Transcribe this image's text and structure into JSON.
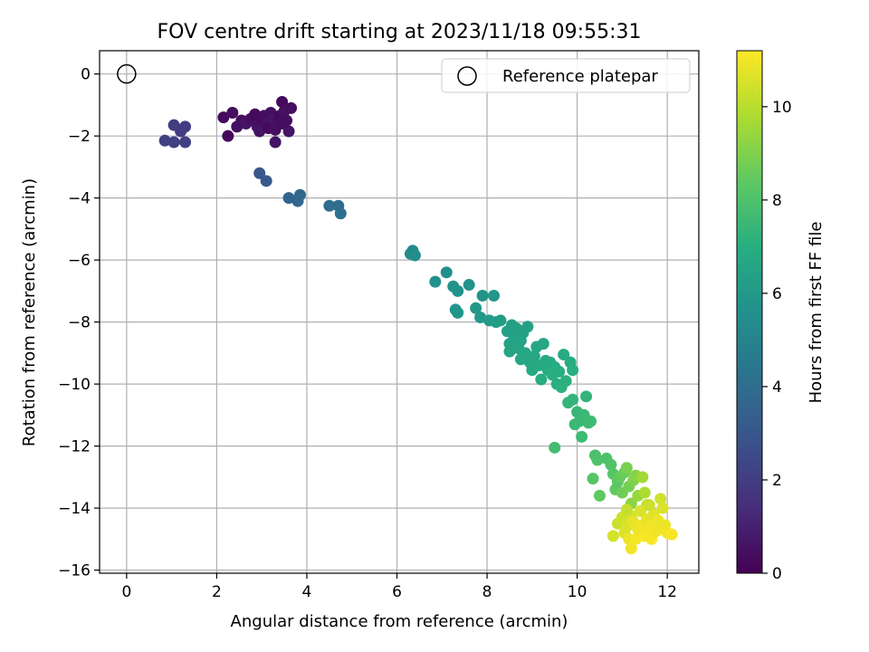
{
  "chart_data": {
    "type": "scatter",
    "title": "FOV centre drift starting at 2023/11/18 09:55:31",
    "xlabel": "Angular distance from reference (arcmin)",
    "ylabel": "Rotation from reference (arcmin)",
    "xlim": [
      -0.6,
      12.7
    ],
    "ylim": [
      -16.1,
      0.75
    ],
    "xticks": [
      0,
      2,
      4,
      6,
      8,
      10,
      12
    ],
    "yticks": [
      0,
      -2,
      -4,
      -6,
      -8,
      -10,
      -12,
      -14,
      -16
    ],
    "grid": true,
    "legend": {
      "position": "top-right",
      "entries": [
        "Reference platepar"
      ]
    },
    "reference_point": {
      "x": 0,
      "y": 0
    },
    "colorbar": {
      "label": "Hours from first FF file",
      "colormap": "viridis",
      "range": [
        0,
        11.2
      ],
      "ticks": [
        0,
        2,
        4,
        6,
        8,
        10
      ]
    },
    "points": [
      {
        "x": 0.85,
        "y": -2.15,
        "h": 2.1
      },
      {
        "x": 1.05,
        "y": -2.2,
        "h": 2.1
      },
      {
        "x": 1.05,
        "y": -1.65,
        "h": 2.0
      },
      {
        "x": 1.2,
        "y": -1.85,
        "h": 2.0
      },
      {
        "x": 1.3,
        "y": -1.7,
        "h": 2.0
      },
      {
        "x": 1.3,
        "y": -2.2,
        "h": 2.1
      },
      {
        "x": 2.15,
        "y": -1.4,
        "h": 0.3
      },
      {
        "x": 2.25,
        "y": -2.0,
        "h": 0.3
      },
      {
        "x": 2.35,
        "y": -1.25,
        "h": 0.4
      },
      {
        "x": 2.45,
        "y": -1.7,
        "h": 0.5
      },
      {
        "x": 2.55,
        "y": -1.5,
        "h": 0.4
      },
      {
        "x": 2.65,
        "y": -1.6,
        "h": 0.6
      },
      {
        "x": 2.75,
        "y": -1.45,
        "h": 0.4
      },
      {
        "x": 2.85,
        "y": -1.3,
        "h": 0.3
      },
      {
        "x": 2.9,
        "y": -1.7,
        "h": 0.5
      },
      {
        "x": 2.95,
        "y": -1.85,
        "h": 0.6
      },
      {
        "x": 3.0,
        "y": -1.5,
        "h": 0.3
      },
      {
        "x": 3.05,
        "y": -1.35,
        "h": 0.4
      },
      {
        "x": 3.1,
        "y": -1.6,
        "h": 0.5
      },
      {
        "x": 3.15,
        "y": -1.75,
        "h": 0.3
      },
      {
        "x": 3.2,
        "y": -1.25,
        "h": 0.4
      },
      {
        "x": 3.25,
        "y": -1.45,
        "h": 0.6
      },
      {
        "x": 3.3,
        "y": -1.8,
        "h": 0.4
      },
      {
        "x": 3.3,
        "y": -2.2,
        "h": 0.6
      },
      {
        "x": 3.35,
        "y": -1.55,
        "h": 0.5
      },
      {
        "x": 3.4,
        "y": -1.35,
        "h": 0.3
      },
      {
        "x": 3.45,
        "y": -0.9,
        "h": 0.3
      },
      {
        "x": 3.45,
        "y": -1.6,
        "h": 0.4
      },
      {
        "x": 3.5,
        "y": -1.2,
        "h": 0.5
      },
      {
        "x": 3.55,
        "y": -1.5,
        "h": 0.4
      },
      {
        "x": 3.6,
        "y": -1.85,
        "h": 0.6
      },
      {
        "x": 3.65,
        "y": -1.1,
        "h": 0.4
      },
      {
        "x": 2.95,
        "y": -3.2,
        "h": 3.0
      },
      {
        "x": 3.1,
        "y": -3.45,
        "h": 3.1
      },
      {
        "x": 3.6,
        "y": -4.0,
        "h": 3.6
      },
      {
        "x": 3.8,
        "y": -4.1,
        "h": 3.7
      },
      {
        "x": 3.85,
        "y": -3.9,
        "h": 3.7
      },
      {
        "x": 4.5,
        "y": -4.25,
        "h": 4.0
      },
      {
        "x": 4.7,
        "y": -4.25,
        "h": 4.0
      },
      {
        "x": 4.75,
        "y": -4.5,
        "h": 4.1
      },
      {
        "x": 6.3,
        "y": -5.8,
        "h": 5.3
      },
      {
        "x": 6.35,
        "y": -5.7,
        "h": 5.3
      },
      {
        "x": 6.4,
        "y": -5.85,
        "h": 5.4
      },
      {
        "x": 6.85,
        "y": -6.7,
        "h": 5.6
      },
      {
        "x": 7.1,
        "y": -6.4,
        "h": 5.5
      },
      {
        "x": 7.25,
        "y": -6.85,
        "h": 5.7
      },
      {
        "x": 7.3,
        "y": -7.6,
        "h": 5.8
      },
      {
        "x": 7.35,
        "y": -7.0,
        "h": 5.7
      },
      {
        "x": 7.35,
        "y": -7.7,
        "h": 5.8
      },
      {
        "x": 7.6,
        "y": -6.8,
        "h": 5.7
      },
      {
        "x": 7.75,
        "y": -7.55,
        "h": 5.9
      },
      {
        "x": 7.85,
        "y": -7.85,
        "h": 6.0
      },
      {
        "x": 7.9,
        "y": -7.15,
        "h": 5.8
      },
      {
        "x": 8.05,
        "y": -7.95,
        "h": 6.1
      },
      {
        "x": 8.15,
        "y": -7.15,
        "h": 5.9
      },
      {
        "x": 8.2,
        "y": -8.0,
        "h": 6.2
      },
      {
        "x": 8.3,
        "y": -7.95,
        "h": 6.2
      },
      {
        "x": 8.45,
        "y": -8.3,
        "h": 6.3
      },
      {
        "x": 8.5,
        "y": -8.7,
        "h": 6.4
      },
      {
        "x": 8.5,
        "y": -8.95,
        "h": 6.5
      },
      {
        "x": 8.55,
        "y": -8.1,
        "h": 6.3
      },
      {
        "x": 8.6,
        "y": -8.45,
        "h": 6.4
      },
      {
        "x": 8.65,
        "y": -8.2,
        "h": 6.3
      },
      {
        "x": 8.7,
        "y": -8.85,
        "h": 6.5
      },
      {
        "x": 8.75,
        "y": -8.6,
        "h": 6.4
      },
      {
        "x": 8.75,
        "y": -9.2,
        "h": 6.6
      },
      {
        "x": 8.8,
        "y": -8.35,
        "h": 6.4
      },
      {
        "x": 8.85,
        "y": -9.0,
        "h": 6.6
      },
      {
        "x": 8.9,
        "y": -8.15,
        "h": 6.3
      },
      {
        "x": 8.95,
        "y": -9.3,
        "h": 6.7
      },
      {
        "x": 9.0,
        "y": -9.55,
        "h": 6.8
      },
      {
        "x": 9.05,
        "y": -9.1,
        "h": 6.7
      },
      {
        "x": 9.1,
        "y": -8.8,
        "h": 6.6
      },
      {
        "x": 9.15,
        "y": -9.4,
        "h": 6.8
      },
      {
        "x": 9.2,
        "y": -9.85,
        "h": 6.9
      },
      {
        "x": 9.25,
        "y": -8.7,
        "h": 6.6
      },
      {
        "x": 9.3,
        "y": -9.25,
        "h": 6.8
      },
      {
        "x": 9.35,
        "y": -9.55,
        "h": 6.9
      },
      {
        "x": 9.4,
        "y": -9.3,
        "h": 6.8
      },
      {
        "x": 9.45,
        "y": -9.7,
        "h": 7.0
      },
      {
        "x": 9.5,
        "y": -9.45,
        "h": 6.9
      },
      {
        "x": 9.55,
        "y": -10.0,
        "h": 7.0
      },
      {
        "x": 9.6,
        "y": -9.6,
        "h": 7.0
      },
      {
        "x": 9.65,
        "y": -10.1,
        "h": 7.1
      },
      {
        "x": 9.7,
        "y": -9.05,
        "h": 6.8
      },
      {
        "x": 9.75,
        "y": -9.9,
        "h": 7.1
      },
      {
        "x": 9.8,
        "y": -10.6,
        "h": 7.3
      },
      {
        "x": 9.85,
        "y": -9.3,
        "h": 6.9
      },
      {
        "x": 9.9,
        "y": -10.5,
        "h": 7.3
      },
      {
        "x": 9.9,
        "y": -9.55,
        "h": 7.0
      },
      {
        "x": 9.5,
        "y": -12.05,
        "h": 7.7
      },
      {
        "x": 9.95,
        "y": -11.3,
        "h": 7.5
      },
      {
        "x": 10.0,
        "y": -10.9,
        "h": 7.4
      },
      {
        "x": 10.05,
        "y": -11.2,
        "h": 7.5
      },
      {
        "x": 10.1,
        "y": -11.7,
        "h": 7.6
      },
      {
        "x": 10.15,
        "y": -11.0,
        "h": 7.5
      },
      {
        "x": 10.2,
        "y": -10.4,
        "h": 7.3
      },
      {
        "x": 10.25,
        "y": -11.25,
        "h": 7.6
      },
      {
        "x": 10.3,
        "y": -11.2,
        "h": 7.6
      },
      {
        "x": 10.35,
        "y": -13.05,
        "h": 8.2
      },
      {
        "x": 10.4,
        "y": -12.3,
        "h": 7.9
      },
      {
        "x": 10.45,
        "y": -12.45,
        "h": 8.0
      },
      {
        "x": 10.5,
        "y": -13.6,
        "h": 8.4
      },
      {
        "x": 10.65,
        "y": -12.4,
        "h": 8.0
      },
      {
        "x": 10.75,
        "y": -12.6,
        "h": 8.1
      },
      {
        "x": 10.8,
        "y": -12.9,
        "h": 8.2
      },
      {
        "x": 10.85,
        "y": -13.4,
        "h": 8.4
      },
      {
        "x": 10.9,
        "y": -13.15,
        "h": 8.3
      },
      {
        "x": 10.95,
        "y": -13.0,
        "h": 8.5
      },
      {
        "x": 11.0,
        "y": -13.5,
        "h": 8.7
      },
      {
        "x": 11.05,
        "y": -12.85,
        "h": 8.6
      },
      {
        "x": 11.1,
        "y": -12.7,
        "h": 8.9
      },
      {
        "x": 11.15,
        "y": -13.3,
        "h": 8.8
      },
      {
        "x": 11.2,
        "y": -13.85,
        "h": 9.2
      },
      {
        "x": 11.25,
        "y": -13.1,
        "h": 9.0
      },
      {
        "x": 11.3,
        "y": -12.95,
        "h": 9.1
      },
      {
        "x": 11.35,
        "y": -13.6,
        "h": 9.4
      },
      {
        "x": 11.45,
        "y": -13.0,
        "h": 9.6
      },
      {
        "x": 11.5,
        "y": -13.5,
        "h": 9.8
      },
      {
        "x": 11.55,
        "y": -13.9,
        "h": 10.0
      },
      {
        "x": 10.8,
        "y": -14.9,
        "h": 10.5
      },
      {
        "x": 10.9,
        "y": -14.5,
        "h": 10.3
      },
      {
        "x": 11.0,
        "y": -14.3,
        "h": 10.4
      },
      {
        "x": 11.05,
        "y": -14.8,
        "h": 10.7
      },
      {
        "x": 11.1,
        "y": -14.6,
        "h": 10.6
      },
      {
        "x": 11.15,
        "y": -15.0,
        "h": 10.9
      },
      {
        "x": 11.2,
        "y": -14.25,
        "h": 10.5
      },
      {
        "x": 11.2,
        "y": -15.3,
        "h": 11.0
      },
      {
        "x": 11.25,
        "y": -14.45,
        "h": 10.8
      },
      {
        "x": 11.3,
        "y": -15.0,
        "h": 11.1
      },
      {
        "x": 11.35,
        "y": -14.7,
        "h": 10.9
      },
      {
        "x": 11.4,
        "y": -14.1,
        "h": 10.6
      },
      {
        "x": 11.45,
        "y": -14.55,
        "h": 11.0
      },
      {
        "x": 11.5,
        "y": -14.9,
        "h": 11.1
      },
      {
        "x": 11.55,
        "y": -14.35,
        "h": 10.8
      },
      {
        "x": 11.6,
        "y": -14.6,
        "h": 11.0
      },
      {
        "x": 11.65,
        "y": -15.0,
        "h": 11.1
      },
      {
        "x": 11.7,
        "y": -14.2,
        "h": 10.7
      },
      {
        "x": 11.75,
        "y": -14.75,
        "h": 11.0
      },
      {
        "x": 11.8,
        "y": -14.4,
        "h": 10.9
      },
      {
        "x": 11.85,
        "y": -13.7,
        "h": 10.4
      },
      {
        "x": 11.9,
        "y": -14.0,
        "h": 10.6
      },
      {
        "x": 11.95,
        "y": -14.55,
        "h": 10.9
      },
      {
        "x": 12.0,
        "y": -14.8,
        "h": 11.0
      },
      {
        "x": 12.1,
        "y": -14.85,
        "h": 11.1
      },
      {
        "x": 11.1,
        "y": -14.05,
        "h": 10.2
      },
      {
        "x": 11.6,
        "y": -13.9,
        "h": 10.3
      }
    ]
  }
}
